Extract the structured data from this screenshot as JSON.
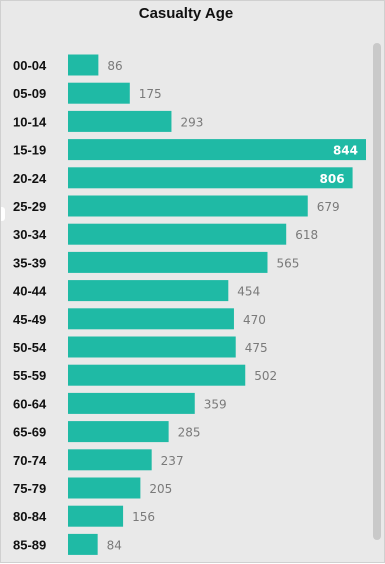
{
  "chart_data": {
    "type": "bar",
    "orientation": "horizontal",
    "title": "Casualty Age",
    "categories": [
      "00-04",
      "05-09",
      "10-14",
      "15-19",
      "20-24",
      "25-29",
      "30-34",
      "35-39",
      "40-44",
      "45-49",
      "50-54",
      "55-59",
      "60-64",
      "65-69",
      "70-74",
      "75-79",
      "80-84",
      "85-89"
    ],
    "values": [
      86,
      175,
      293,
      844,
      806,
      679,
      618,
      565,
      454,
      470,
      475,
      502,
      359,
      285,
      237,
      205,
      156,
      84
    ],
    "data_labels": [
      "86",
      "175",
      "293",
      "844",
      "806",
      "679",
      "618",
      "565",
      "454",
      "470",
      "475",
      "502",
      "359",
      "285",
      "237",
      "205",
      "156",
      "84"
    ],
    "xlim": [
      0,
      844
    ],
    "grid": false,
    "colors": {
      "bar": "#1fbaa5",
      "label_outside": "#7a7a7a",
      "label_inside": "#ffffff"
    }
  }
}
